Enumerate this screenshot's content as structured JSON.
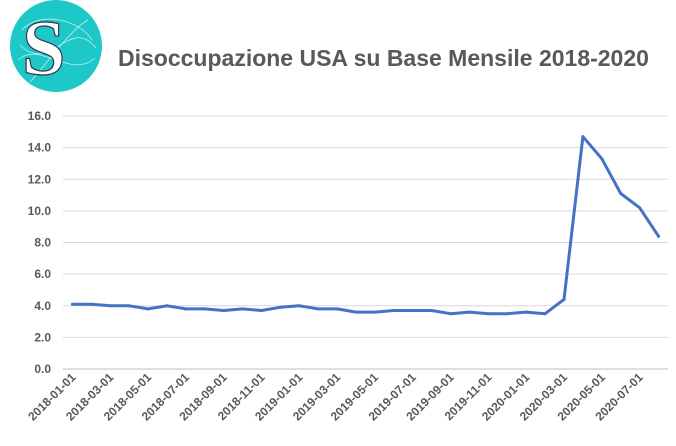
{
  "logo": {
    "letter": "S",
    "color": "#1ec8c8"
  },
  "chart_data": {
    "type": "line",
    "title": "Disoccupazione USA su Base Mensile 2018-2020",
    "xlabel": "",
    "ylabel": "",
    "ylim": [
      0,
      16
    ],
    "yticks": [
      "0.0",
      "2.0",
      "4.0",
      "6.0",
      "8.0",
      "10.0",
      "12.0",
      "14.0",
      "16.0"
    ],
    "grid": true,
    "legend": "none",
    "x": [
      "2018-01-01",
      "2018-02-01",
      "2018-03-01",
      "2018-04-01",
      "2018-05-01",
      "2018-06-01",
      "2018-07-01",
      "2018-08-01",
      "2018-09-01",
      "2018-10-01",
      "2018-11-01",
      "2018-12-01",
      "2019-01-01",
      "2019-02-01",
      "2019-03-01",
      "2019-04-01",
      "2019-05-01",
      "2019-06-01",
      "2019-07-01",
      "2019-08-01",
      "2019-09-01",
      "2019-10-01",
      "2019-11-01",
      "2019-12-01",
      "2020-01-01",
      "2020-02-01",
      "2020-03-01",
      "2020-04-01",
      "2020-05-01",
      "2020-06-01",
      "2020-07-01",
      "2020-08-01"
    ],
    "xtick_labels": [
      "2018-01-01",
      "2018-03-01",
      "2018-05-01",
      "2018-07-01",
      "2018-09-01",
      "2018-11-01",
      "2019-01-01",
      "2019-03-01",
      "2019-05-01",
      "2019-07-01",
      "2019-09-01",
      "2019-11-01",
      "2020-01-01",
      "2020-03-01",
      "2020-05-01",
      "2020-07-01"
    ],
    "series": [
      {
        "color": "#4472c4",
        "values": [
          4.1,
          4.1,
          4.0,
          4.0,
          3.8,
          4.0,
          3.8,
          3.8,
          3.7,
          3.8,
          3.7,
          3.9,
          4.0,
          3.8,
          3.8,
          3.6,
          3.6,
          3.7,
          3.7,
          3.7,
          3.5,
          3.6,
          3.5,
          3.5,
          3.6,
          3.5,
          4.4,
          14.7,
          13.3,
          11.1,
          10.2,
          8.4
        ]
      }
    ]
  }
}
